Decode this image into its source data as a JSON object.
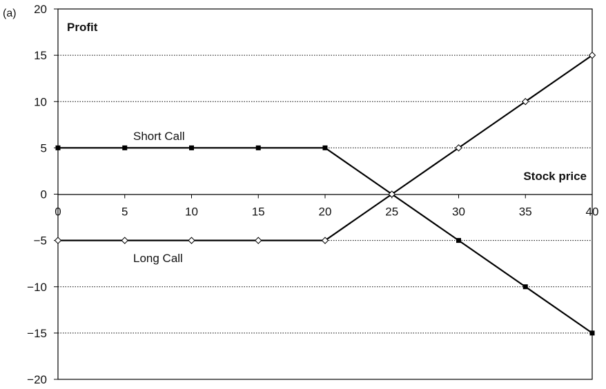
{
  "chart_data": {
    "type": "line",
    "panel_label": "(a)",
    "ylabel": "Profit",
    "xlabel": "Stock price",
    "xlim": [
      0,
      40
    ],
    "ylim": [
      -20,
      20
    ],
    "x_ticks": [
      0,
      5,
      10,
      15,
      20,
      25,
      30,
      35,
      40
    ],
    "y_ticks": [
      20,
      15,
      10,
      5,
      0,
      -5,
      -10,
      -15,
      -20
    ],
    "y_tick_labels": [
      "20",
      "15",
      "10",
      "5",
      "0",
      "−5",
      "−10",
      "−15",
      "−20"
    ],
    "grid": "horizontal dotted",
    "series": [
      {
        "name": "Short Call",
        "marker": "square",
        "color": "#000000",
        "x": [
          0,
          5,
          10,
          15,
          20,
          25,
          30,
          35,
          40
        ],
        "y": [
          5,
          5,
          5,
          5,
          5,
          0,
          -5,
          -10,
          -15
        ]
      },
      {
        "name": "Long Call",
        "marker": "diamond",
        "color": "#000000",
        "x": [
          0,
          5,
          10,
          15,
          20,
          25,
          30,
          35,
          40
        ],
        "y": [
          -5,
          -5,
          -5,
          -5,
          -5,
          0,
          5,
          10,
          15
        ]
      }
    ]
  }
}
